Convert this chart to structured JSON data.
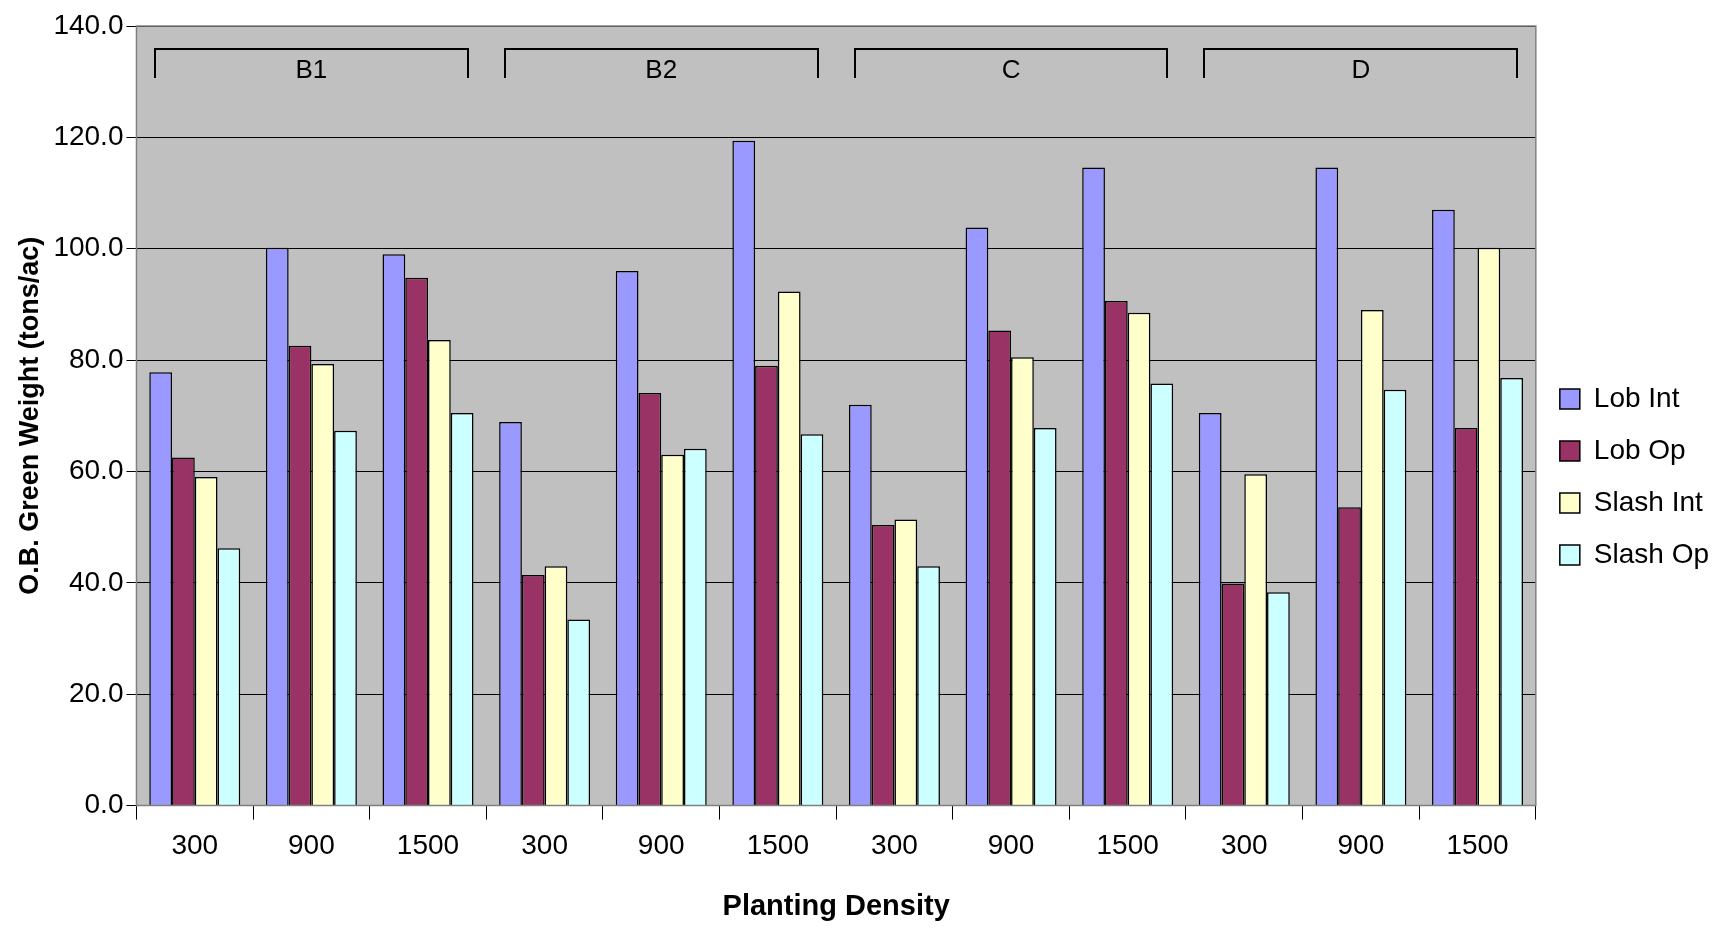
{
  "chart_data": {
    "type": "bar",
    "xlabel": "Planting Density",
    "ylabel": "O.B. Green Weight (tons/ac)",
    "categories": [
      "300",
      "900",
      "1500",
      "300",
      "900",
      "1500",
      "300",
      "900",
      "1500",
      "300",
      "900",
      "1500"
    ],
    "series": [
      {
        "name": "Lob Int",
        "color": "#9999ff",
        "values": [
          77.8,
          100.2,
          99.0,
          68.9,
          96.0,
          119.4,
          72.0,
          103.8,
          114.6,
          70.5,
          114.6,
          107.0
        ]
      },
      {
        "name": "Lob Op",
        "color": "#993366",
        "values": [
          62.5,
          82.6,
          94.8,
          41.4,
          74.1,
          79.0,
          50.4,
          85.3,
          90.6,
          39.9,
          53.6,
          67.8
        ]
      },
      {
        "name": "Slash Int",
        "color": "#ffffcc",
        "values": [
          59.0,
          79.3,
          83.6,
          43.0,
          63.0,
          92.3,
          51.4,
          80.5,
          88.5,
          59.5,
          89.0,
          100.2
        ]
      },
      {
        "name": "Slash Op",
        "color": "#ccffff",
        "values": [
          46.2,
          67.3,
          70.5,
          33.4,
          64.1,
          66.7,
          43.0,
          67.8,
          75.8,
          38.3,
          74.7,
          76.8
        ]
      }
    ],
    "ylim": [
      0,
      140
    ],
    "yticks": [
      {
        "value": 0,
        "label": "0.0"
      },
      {
        "value": 20,
        "label": "20.0"
      },
      {
        "value": 40,
        "label": "40.0"
      },
      {
        "value": 60,
        "label": "60.0"
      },
      {
        "value": 80,
        "label": "80.0"
      },
      {
        "value": 100,
        "label": "100.0"
      },
      {
        "value": 120,
        "label": "120.0"
      },
      {
        "value": 140,
        "label": "140.0"
      }
    ],
    "annotations": [
      "B1",
      "B2",
      "C",
      "D"
    ],
    "grid": "y",
    "legend": "right"
  }
}
